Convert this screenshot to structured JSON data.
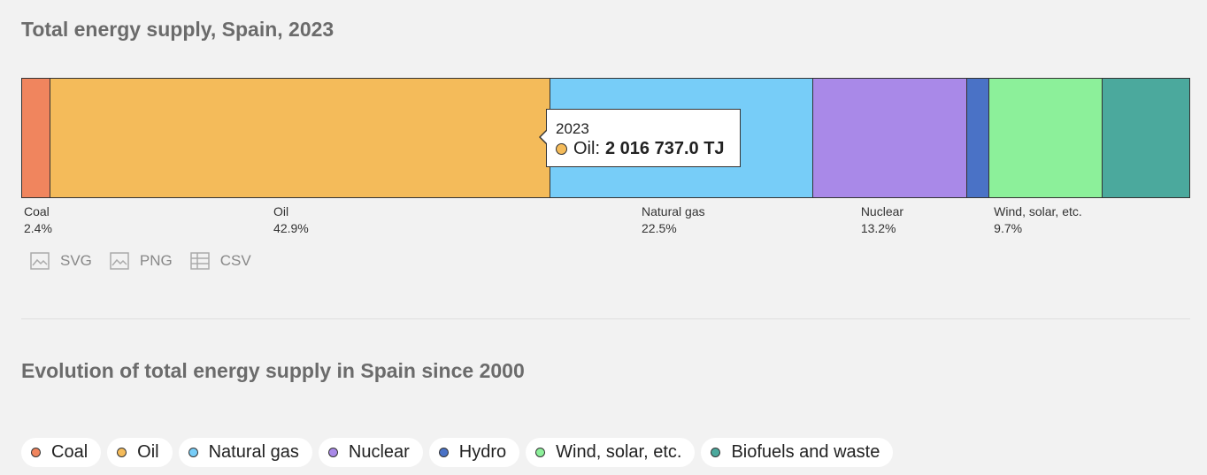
{
  "title": "Total energy supply, Spain, 2023",
  "chart_data": {
    "type": "bar",
    "orientation": "stacked-horizontal-100",
    "title": "Total energy supply, Spain, 2023",
    "categories": [
      "Coal",
      "Oil",
      "Natural gas",
      "Nuclear",
      "Hydro",
      "Wind, solar, etc.",
      "Biofuels and waste"
    ],
    "values": [
      2.4,
      42.9,
      22.5,
      13.2,
      1.9,
      9.7,
      7.4
    ],
    "unit": "%",
    "colors": [
      "#f0855e",
      "#f4bb5a",
      "#77cdf8",
      "#a989e8",
      "#4a72c6",
      "#8cf09a",
      "#4ba99d"
    ],
    "labels": [
      {
        "name": "Coal",
        "pct": "2.4%"
      },
      {
        "name": "Oil",
        "pct": "42.9%"
      },
      {
        "name": "Natural gas",
        "pct": "22.5%"
      },
      {
        "name": "Nuclear",
        "pct": "13.2%"
      },
      {
        "name": "Wind, solar, etc.",
        "pct": "9.7%"
      }
    ],
    "tooltip": {
      "year": "2023",
      "series": "Oil:",
      "value": "2 016 737.0 TJ",
      "color": "#f4bb5a"
    }
  },
  "downloads": [
    {
      "label": "SVG",
      "icon": "image-icon"
    },
    {
      "label": "PNG",
      "icon": "image-icon"
    },
    {
      "label": "CSV",
      "icon": "table-icon"
    }
  ],
  "subtitle": "Evolution of total energy supply in Spain since 2000",
  "legend": [
    {
      "label": "Coal",
      "color": "#f0855e"
    },
    {
      "label": "Oil",
      "color": "#f4bb5a"
    },
    {
      "label": "Natural gas",
      "color": "#77cdf8"
    },
    {
      "label": "Nuclear",
      "color": "#a989e8"
    },
    {
      "label": "Hydro",
      "color": "#4a72c6"
    },
    {
      "label": "Wind, solar, etc.",
      "color": "#8cf09a"
    },
    {
      "label": "Biofuels and waste",
      "color": "#4ba99d"
    }
  ]
}
